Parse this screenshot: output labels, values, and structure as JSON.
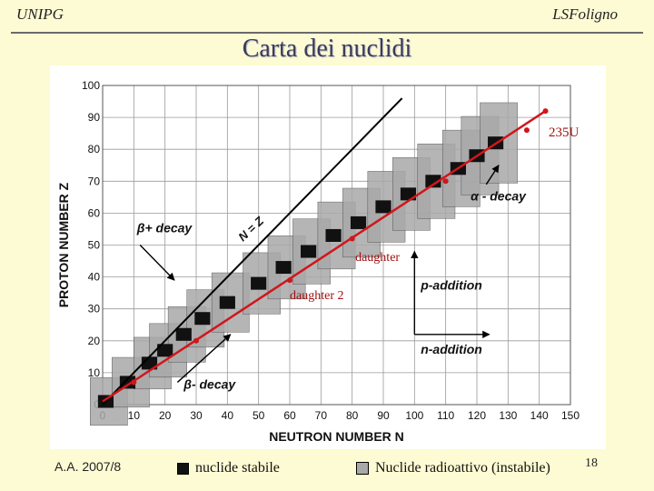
{
  "header": {
    "left": "UNIPG",
    "right": "LSFoligno"
  },
  "title": "Carta dei nuclidi",
  "chart_data": {
    "type": "scatter",
    "xlabel": "NEUTRON NUMBER N",
    "ylabel": "PROTON NUMBER Z",
    "xlim": [
      0,
      150
    ],
    "ylim": [
      0,
      100
    ],
    "xticks": [
      0,
      10,
      20,
      30,
      40,
      50,
      60,
      70,
      80,
      90,
      100,
      110,
      120,
      130,
      140,
      150
    ],
    "yticks": [
      0,
      10,
      20,
      30,
      40,
      50,
      60,
      70,
      80,
      90,
      100
    ],
    "grid": true,
    "nz_line": {
      "label": "N = Z",
      "points": [
        [
          0,
          0
        ],
        [
          96,
          96
        ]
      ]
    },
    "stable_band": [
      [
        1,
        1
      ],
      [
        8,
        7
      ],
      [
        15,
        13
      ],
      [
        20,
        17
      ],
      [
        26,
        22
      ],
      [
        32,
        27
      ],
      [
        40,
        32
      ],
      [
        50,
        38
      ],
      [
        58,
        43
      ],
      [
        66,
        48
      ],
      [
        74,
        53
      ],
      [
        82,
        57
      ],
      [
        90,
        62
      ],
      [
        98,
        66
      ],
      [
        106,
        70
      ],
      [
        114,
        74
      ],
      [
        120,
        78
      ],
      [
        126,
        82
      ]
    ],
    "red_line": {
      "points": [
        [
          0,
          1
        ],
        [
          142,
          92
        ]
      ]
    },
    "decay_chain": [
      [
        142,
        92
      ],
      [
        136,
        86
      ],
      [
        110,
        70
      ],
      [
        80,
        52
      ],
      [
        60,
        39
      ],
      [
        30,
        20
      ],
      [
        10,
        7
      ]
    ],
    "annotations": [
      {
        "text": "235U",
        "x": 143,
        "y": 84
      },
      {
        "text": "daughter",
        "x": 81,
        "y": 45
      },
      {
        "text": "daughter 2",
        "x": 60,
        "y": 33
      },
      {
        "text": "β+ decay",
        "x": 11,
        "y": 54
      },
      {
        "text": "β- decay",
        "x": 26,
        "y": 5
      },
      {
        "text": "α - decay",
        "x": 118,
        "y": 64
      },
      {
        "text": "p-addition",
        "x": 102,
        "y": 36
      },
      {
        "text": "n-addition",
        "x": 102,
        "y": 16
      },
      {
        "text": "N = Z",
        "x": 45,
        "y": 51
      }
    ]
  },
  "footer": {
    "course": "A.A. 2007/8",
    "legend_stable": "nuclide stabile",
    "legend_radio": "Nuclide radioattivo (instabile)",
    "page": "18",
    "stable_color": "#111111",
    "radio_color": "#a9a9a9"
  }
}
